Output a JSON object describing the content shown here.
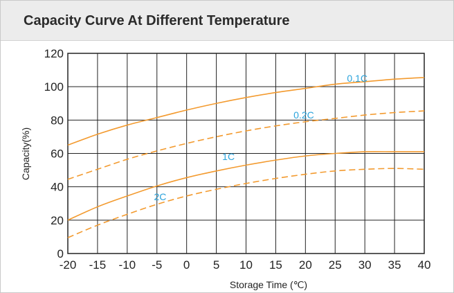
{
  "panel": {
    "title": "Capacity Curve At Different Temperature"
  },
  "colors": {
    "curve": "#f39a2e",
    "label": "#2aa3dc",
    "grid": "#222222"
  },
  "chart_data": {
    "type": "line",
    "title": "",
    "xlabel": "Storage Time (℃)",
    "ylabel": "Capacity(%)",
    "xlim": [
      -20,
      40
    ],
    "ylim": [
      0,
      120
    ],
    "x_ticks": [
      "-20",
      "-15",
      "-10",
      "-5",
      "0",
      "5",
      "10",
      "15",
      "20",
      "25",
      "30",
      "35",
      "40"
    ],
    "y_ticks": [
      "0",
      "20",
      "40",
      "60",
      "80",
      "100",
      "120"
    ],
    "x_tick_values": [
      -20,
      -15,
      -10,
      -5,
      0,
      5,
      10,
      15,
      20,
      25,
      30,
      35,
      40
    ],
    "y_tick_values": [
      0,
      20,
      40,
      60,
      80,
      100,
      120
    ],
    "grid": true,
    "x": [
      -20,
      -15,
      -10,
      -5,
      0,
      5,
      10,
      15,
      20,
      25,
      30,
      35,
      40
    ],
    "series": [
      {
        "name": "0.1C",
        "style": "solid",
        "values": [
          65,
          71.5,
          77,
          81.5,
          86,
          90,
          93.5,
          96.5,
          99,
          101.5,
          103,
          104.5,
          105.5
        ]
      },
      {
        "name": "0.2C",
        "style": "dashed",
        "values": [
          44.5,
          50.5,
          56.5,
          61.5,
          66,
          70,
          73.5,
          76.5,
          79,
          81,
          83,
          84.5,
          85.5
        ]
      },
      {
        "name": "1C",
        "style": "solid",
        "values": [
          20,
          28,
          34.5,
          40.5,
          45.5,
          49.5,
          53,
          56,
          58.5,
          60,
          61,
          61,
          61
        ]
      },
      {
        "name": "2C",
        "style": "dashed",
        "values": [
          9.5,
          17,
          23.5,
          29.5,
          34.5,
          38.5,
          42,
          45,
          47.5,
          49.5,
          50.5,
          51,
          50.5
        ]
      }
    ],
    "annotations": [
      {
        "text": "0.1C",
        "x": 27,
        "y": 103
      },
      {
        "text": "0.2C",
        "x": 18,
        "y": 81
      },
      {
        "text": "1C",
        "x": 6,
        "y": 56
      },
      {
        "text": "2C",
        "x": -5.5,
        "y": 32
      }
    ]
  }
}
